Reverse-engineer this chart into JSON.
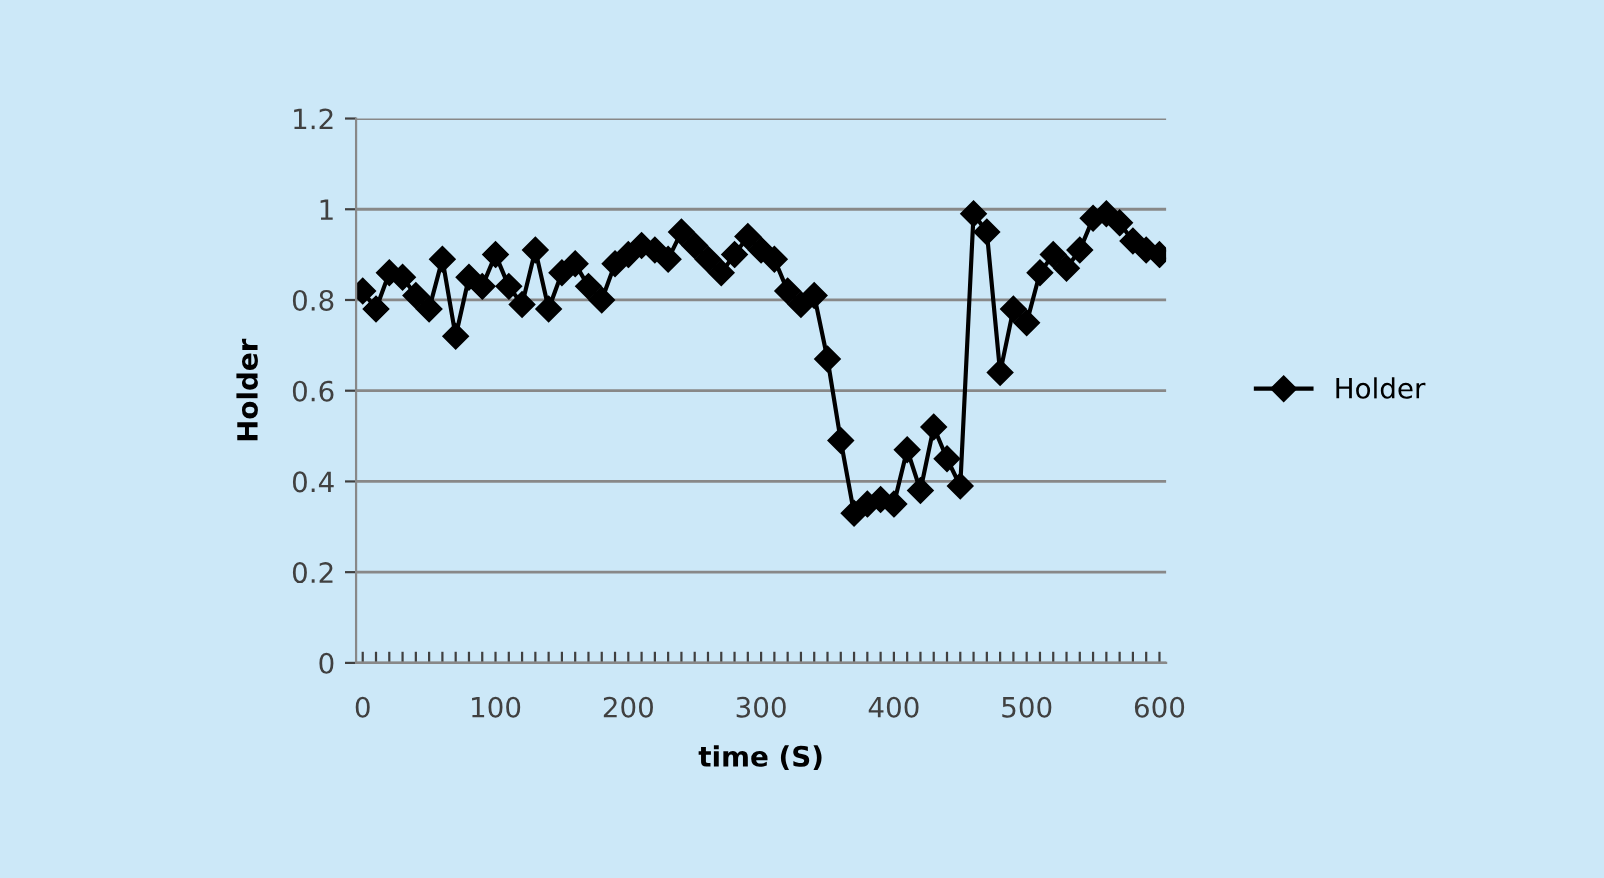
{
  "chart_data": {
    "type": "line",
    "xlabel": "time (S)",
    "ylabel": "Holder",
    "categories": [
      "0",
      null,
      null,
      null,
      null,
      null,
      null,
      null,
      null,
      null,
      "100",
      null,
      null,
      null,
      null,
      null,
      null,
      null,
      null,
      null,
      "200",
      null,
      null,
      null,
      null,
      null,
      null,
      null,
      null,
      null,
      "300",
      null,
      null,
      null,
      null,
      null,
      null,
      null,
      null,
      null,
      "400",
      null,
      null,
      null,
      null,
      null,
      null,
      null,
      null,
      null,
      "500",
      null,
      null,
      null,
      null,
      null,
      null,
      null,
      null,
      null,
      "600"
    ],
    "series": [
      {
        "name": "Holder",
        "color": "#000000",
        "values": [
          0.82,
          0.78,
          0.86,
          0.85,
          0.81,
          0.78,
          0.89,
          0.72,
          0.85,
          0.83,
          0.9,
          0.83,
          0.79,
          0.91,
          0.78,
          0.86,
          0.88,
          0.83,
          0.8,
          0.88,
          0.9,
          0.92,
          0.91,
          0.89,
          0.95,
          0.92,
          0.89,
          0.86,
          0.9,
          0.94,
          0.91,
          0.89,
          0.82,
          0.79,
          0.81,
          0.67,
          0.49,
          0.33,
          0.35,
          0.36,
          0.35,
          0.47,
          0.38,
          0.52,
          0.45,
          0.39,
          0.99,
          0.95,
          0.64,
          0.78,
          0.75,
          0.86,
          0.9,
          0.87,
          0.91,
          0.98,
          0.99,
          0.97,
          0.93,
          0.91,
          0.9
        ]
      }
    ],
    "ylim": [
      0,
      1.2
    ],
    "yticks": [
      0,
      0.2,
      0.4,
      0.6,
      0.8,
      1,
      1.2
    ],
    "grid": "y",
    "legend": "right",
    "marker": "diamond",
    "line_style": "solid"
  }
}
